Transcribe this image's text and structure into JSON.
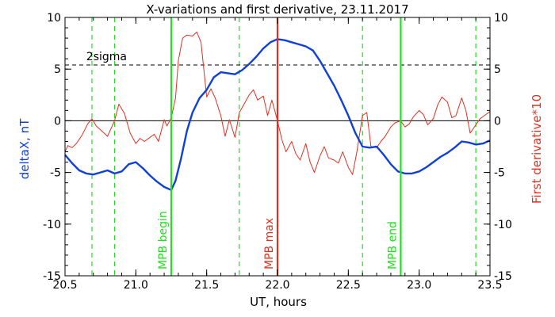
{
  "chart_data": {
    "type": "line",
    "title": "X-variations and first derivative, 23.11.2017",
    "xlabel": "UT, hours",
    "ylabel_left": "deltaX, nT",
    "ylabel_right": "First derivative*10",
    "xlim": [
      20.5,
      23.5
    ],
    "ylim": [
      -15,
      10
    ],
    "x_ticks": [
      "20.5",
      "21.0",
      "21.5",
      "22.0",
      "22.5",
      "23.0",
      "23.5"
    ],
    "y_ticks_left": [
      "10",
      "5",
      "0",
      "-5",
      "-10",
      "-15"
    ],
    "y_ticks_right": [
      "10",
      "5",
      "0",
      "-5",
      "-10",
      "-15"
    ],
    "colors": {
      "deltax": "#1040d8",
      "derivative": "#e03020",
      "mpb": "#20e020",
      "max": "#e03020",
      "axis": "#000000"
    },
    "threshold": {
      "label": "2sigma",
      "value": 5.4
    },
    "zero_line": 0,
    "markers": [
      {
        "x": 21.25,
        "label": "MPB begin",
        "color": "#20e020"
      },
      {
        "x": 22.0,
        "label": "MPB max",
        "color": "#e03020"
      },
      {
        "x": 22.87,
        "label": "MPB end",
        "color": "#20e020"
      }
    ],
    "dashed_markers": [
      20.69,
      20.85,
      21.73,
      22.6,
      23.4
    ],
    "series": [
      {
        "name": "deltaX",
        "axis": "left",
        "x": [
          20.5,
          20.55,
          20.6,
          20.65,
          20.7,
          20.75,
          20.8,
          20.85,
          20.9,
          20.95,
          21.0,
          21.05,
          21.1,
          21.15,
          21.2,
          21.25,
          21.28,
          21.32,
          21.36,
          21.4,
          21.45,
          21.5,
          21.55,
          21.6,
          21.65,
          21.7,
          21.75,
          21.8,
          21.85,
          21.9,
          21.95,
          22.0,
          22.05,
          22.1,
          22.15,
          22.2,
          22.25,
          22.3,
          22.35,
          22.4,
          22.45,
          22.5,
          22.55,
          22.6,
          22.65,
          22.7,
          22.75,
          22.8,
          22.85,
          22.9,
          22.95,
          23.0,
          23.05,
          23.1,
          23.15,
          23.2,
          23.25,
          23.3,
          23.35,
          23.4,
          23.45,
          23.5
        ],
        "values": [
          -3.3,
          -4.1,
          -4.8,
          -5.1,
          -5.2,
          -5.0,
          -4.8,
          -5.1,
          -4.9,
          -4.2,
          -4.0,
          -4.6,
          -5.3,
          -5.9,
          -6.4,
          -6.7,
          -5.8,
          -3.6,
          -1.0,
          0.8,
          2.2,
          3.0,
          4.2,
          4.7,
          4.6,
          4.5,
          4.9,
          5.5,
          6.2,
          7.0,
          7.6,
          7.9,
          7.8,
          7.6,
          7.4,
          7.2,
          6.8,
          5.8,
          4.6,
          3.4,
          2.0,
          0.5,
          -1.2,
          -2.5,
          -2.6,
          -2.5,
          -3.3,
          -4.2,
          -4.9,
          -5.1,
          -5.1,
          -4.9,
          -4.5,
          -4.0,
          -3.5,
          -3.1,
          -2.6,
          -2.0,
          -2.1,
          -2.3,
          -2.2,
          -1.9
        ]
      },
      {
        "name": "First derivative*10",
        "axis": "right",
        "x": [
          20.5,
          20.52,
          20.55,
          20.58,
          20.62,
          20.66,
          20.69,
          20.72,
          20.76,
          20.8,
          20.85,
          20.88,
          20.92,
          20.96,
          21.0,
          21.03,
          21.06,
          21.1,
          21.13,
          21.16,
          21.2,
          21.22,
          21.25,
          21.28,
          21.3,
          21.33,
          21.36,
          21.4,
          21.43,
          21.46,
          21.5,
          21.53,
          21.56,
          21.6,
          21.63,
          21.66,
          21.7,
          21.73,
          21.76,
          21.8,
          21.83,
          21.86,
          21.9,
          21.93,
          21.96,
          22.0,
          22.03,
          22.06,
          22.1,
          22.13,
          22.16,
          22.2,
          22.23,
          22.26,
          22.3,
          22.33,
          22.36,
          22.4,
          22.43,
          22.46,
          22.5,
          22.53,
          22.56,
          22.6,
          22.63,
          22.66,
          22.7,
          22.73,
          22.76,
          22.8,
          22.83,
          22.87,
          22.9,
          22.93,
          22.96,
          23.0,
          23.03,
          23.06,
          23.1,
          23.13,
          23.16,
          23.2,
          23.23,
          23.26,
          23.3,
          23.33,
          23.36,
          23.4,
          23.43,
          23.46,
          23.5
        ],
        "values": [
          -3.0,
          -2.4,
          -2.6,
          -2.2,
          -1.4,
          -0.3,
          0.2,
          -0.5,
          -1.0,
          -1.5,
          0.0,
          1.6,
          0.7,
          -1.2,
          -2.2,
          -1.7,
          -2.0,
          -1.6,
          -1.3,
          -2.0,
          0.1,
          -0.5,
          0.3,
          2.2,
          5.8,
          8.0,
          8.3,
          8.2,
          8.6,
          7.6,
          2.3,
          3.1,
          2.2,
          0.5,
          -1.5,
          0.1,
          -1.6,
          0.8,
          1.5,
          2.5,
          3.0,
          2.0,
          2.4,
          0.5,
          2.0,
          0.0,
          -1.8,
          -3.0,
          -2.0,
          -3.2,
          -3.8,
          -2.2,
          -4.0,
          -5.0,
          -3.4,
          -2.5,
          -3.6,
          -3.8,
          -4.1,
          -3.0,
          -4.5,
          -5.2,
          -3.0,
          0.5,
          0.8,
          -2.5,
          -2.6,
          -2.0,
          -1.5,
          -0.6,
          -0.2,
          0.0,
          -0.6,
          -0.3,
          0.4,
          1.0,
          0.6,
          -0.4,
          0.2,
          1.5,
          2.3,
          1.8,
          0.3,
          0.5,
          2.2,
          1.0,
          -1.2,
          -0.4,
          0.2,
          0.5,
          0.9
        ]
      }
    ]
  }
}
